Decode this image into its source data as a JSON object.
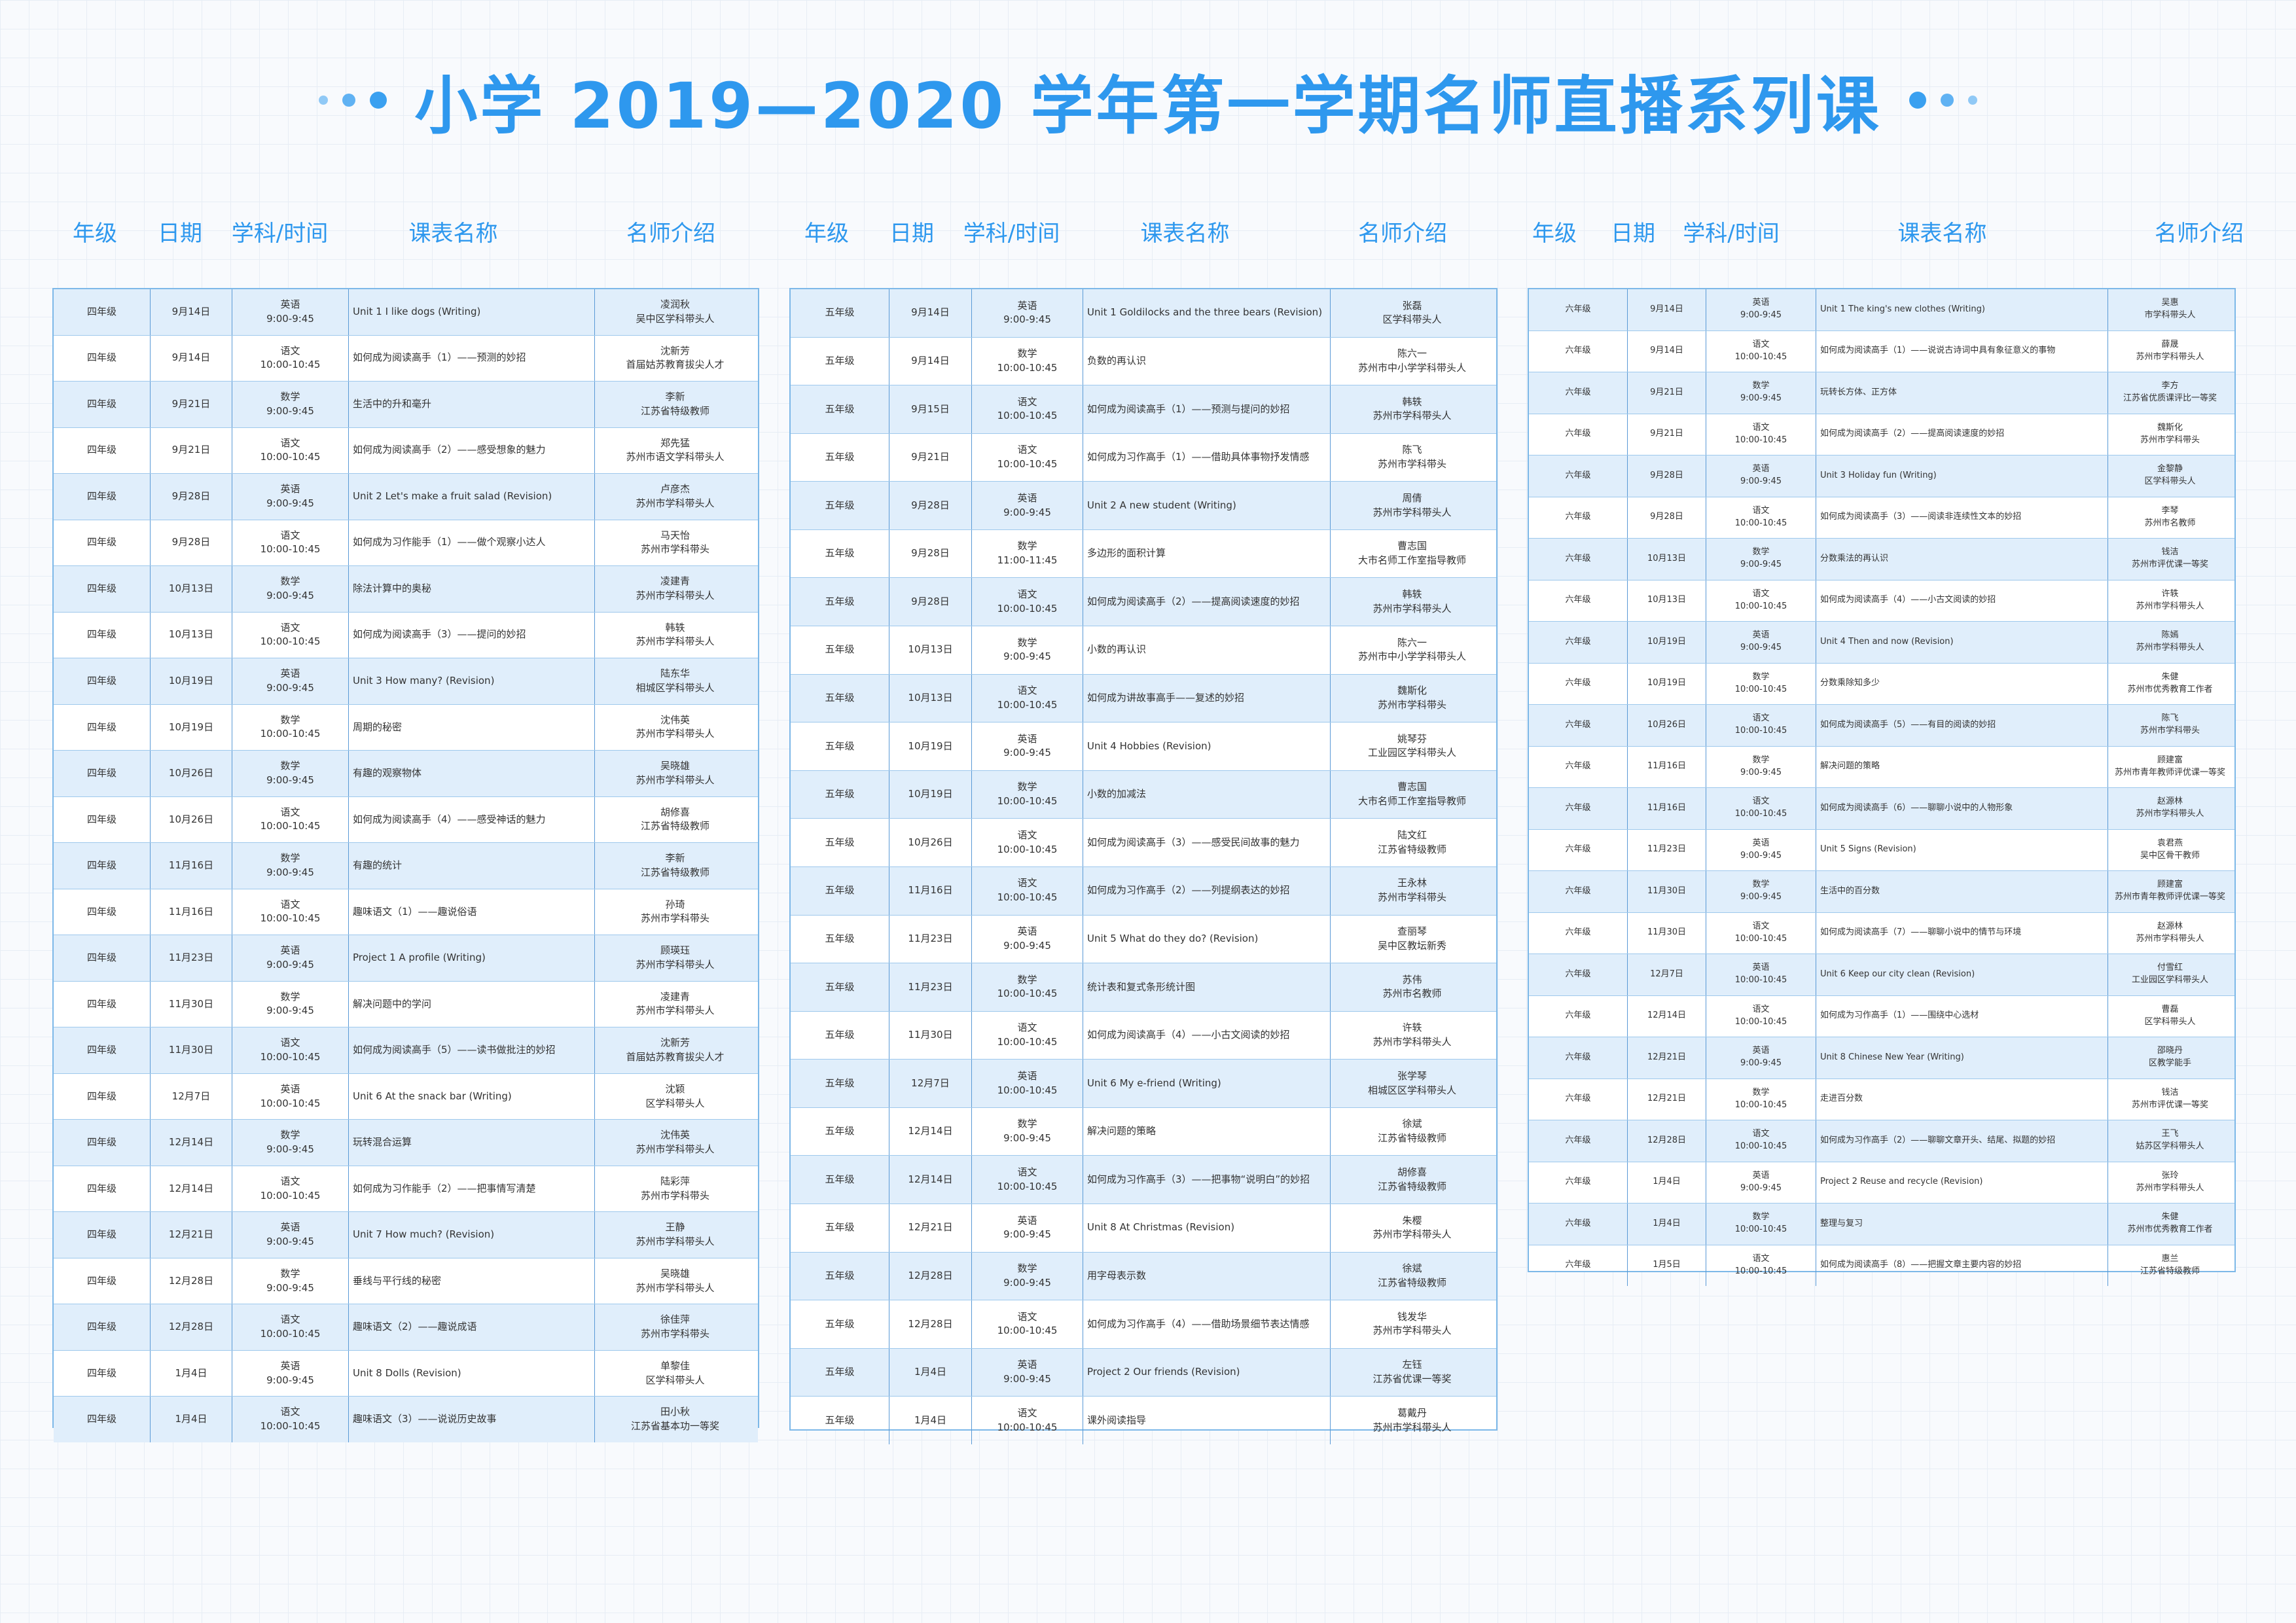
{
  "title": "小学 2019—2020 学年第一学期名师直播系列课",
  "colors": {
    "accent": "#2e98ee",
    "row_alt": "#e0eefb",
    "border": "#7db8e8"
  },
  "headers": {
    "grade": "年级",
    "date": "日期",
    "subject_time": "学科/时间",
    "course": "课表名称",
    "teacher": "名师介绍"
  },
  "grade4": [
    {
      "grade": "四年级",
      "date": "9月14日",
      "subject": "英语",
      "time": "9:00-9:45",
      "course": "Unit 1 I like dogs (Writing)",
      "teacher": "凌润秋",
      "title": "吴中区学科带头人"
    },
    {
      "grade": "四年级",
      "date": "9月14日",
      "subject": "语文",
      "time": "10:00-10:45",
      "course": "如何成为阅读高手（1）——预测的妙招",
      "teacher": "沈新芳",
      "title": "首届姑苏教育拔尖人才"
    },
    {
      "grade": "四年级",
      "date": "9月21日",
      "subject": "数学",
      "time": "9:00-9:45",
      "course": "生活中的升和毫升",
      "teacher": "李新",
      "title": "江苏省特级教师"
    },
    {
      "grade": "四年级",
      "date": "9月21日",
      "subject": "语文",
      "time": "10:00-10:45",
      "course": "如何成为阅读高手（2）——感受想象的魅力",
      "teacher": "郑先猛",
      "title": "苏州市语文学科带头人"
    },
    {
      "grade": "四年级",
      "date": "9月28日",
      "subject": "英语",
      "time": "9:00-9:45",
      "course": "Unit 2 Let's make a fruit salad (Revision)",
      "teacher": "卢彦杰",
      "title": "苏州市学科带头人"
    },
    {
      "grade": "四年级",
      "date": "9月28日",
      "subject": "语文",
      "time": "10:00-10:45",
      "course": "如何成为习作能手（1）——做个观察小达人",
      "teacher": "马天怡",
      "title": "苏州市学科带头"
    },
    {
      "grade": "四年级",
      "date": "10月13日",
      "subject": "数学",
      "time": "9:00-9:45",
      "course": "除法计算中的奥秘",
      "teacher": "凌建青",
      "title": "苏州市学科带头人"
    },
    {
      "grade": "四年级",
      "date": "10月13日",
      "subject": "语文",
      "time": "10:00-10:45",
      "course": "如何成为阅读高手（3）——提问的妙招",
      "teacher": "韩轶",
      "title": "苏州市学科带头人"
    },
    {
      "grade": "四年级",
      "date": "10月19日",
      "subject": "英语",
      "time": "9:00-9:45",
      "course": "Unit 3 How many? (Revision)",
      "teacher": "陆东华",
      "title": "相城区学科带头人"
    },
    {
      "grade": "四年级",
      "date": "10月19日",
      "subject": "数学",
      "time": "10:00-10:45",
      "course": "周期的秘密",
      "teacher": "沈伟英",
      "title": "苏州市学科带头人"
    },
    {
      "grade": "四年级",
      "date": "10月26日",
      "subject": "数学",
      "time": "9:00-9:45",
      "course": "有趣的观察物体",
      "teacher": "吴晓雄",
      "title": "苏州市学科带头人"
    },
    {
      "grade": "四年级",
      "date": "10月26日",
      "subject": "语文",
      "time": "10:00-10:45",
      "course": "如何成为阅读高手（4）——感受神话的魅力",
      "teacher": "胡修喜",
      "title": "江苏省特级教师"
    },
    {
      "grade": "四年级",
      "date": "11月16日",
      "subject": "数学",
      "time": "9:00-9:45",
      "course": "有趣的统计",
      "teacher": "李新",
      "title": "江苏省特级教师"
    },
    {
      "grade": "四年级",
      "date": "11月16日",
      "subject": "语文",
      "time": "10:00-10:45",
      "course": "趣味语文（1）——趣说俗语",
      "teacher": "孙琦",
      "title": "苏州市学科带头"
    },
    {
      "grade": "四年级",
      "date": "11月23日",
      "subject": "英语",
      "time": "9:00-9:45",
      "course": "Project 1 A profile (Writing)",
      "teacher": "顾瑛珏",
      "title": "苏州市学科带头人"
    },
    {
      "grade": "四年级",
      "date": "11月30日",
      "subject": "数学",
      "time": "9:00-9:45",
      "course": "解决问题中的学问",
      "teacher": "凌建青",
      "title": "苏州市学科带头人"
    },
    {
      "grade": "四年级",
      "date": "11月30日",
      "subject": "语文",
      "time": "10:00-10:45",
      "course": "如何成为阅读高手（5）——读书做批注的妙招",
      "teacher": "沈新芳",
      "title": "首届姑苏教育拔尖人才"
    },
    {
      "grade": "四年级",
      "date": "12月7日",
      "subject": "英语",
      "time": "10:00-10:45",
      "course": "Unit 6 At the snack bar (Writing)",
      "teacher": "沈颖",
      "title": "区学科带头人"
    },
    {
      "grade": "四年级",
      "date": "12月14日",
      "subject": "数学",
      "time": "9:00-9:45",
      "course": "玩转混合运算",
      "teacher": "沈伟英",
      "title": "苏州市学科带头人"
    },
    {
      "grade": "四年级",
      "date": "12月14日",
      "subject": "语文",
      "time": "10:00-10:45",
      "course": "如何成为习作能手（2）——把事情写清楚",
      "teacher": "陆彩萍",
      "title": "苏州市学科带头"
    },
    {
      "grade": "四年级",
      "date": "12月21日",
      "subject": "英语",
      "time": "9:00-9:45",
      "course": "Unit 7 How much? (Revision)",
      "teacher": "王静",
      "title": "苏州市学科带头人"
    },
    {
      "grade": "四年级",
      "date": "12月28日",
      "subject": "数学",
      "time": "9:00-9:45",
      "course": "垂线与平行线的秘密",
      "teacher": "吴晓雄",
      "title": "苏州市学科带头人"
    },
    {
      "grade": "四年级",
      "date": "12月28日",
      "subject": "语文",
      "time": "10:00-10:45",
      "course": "趣味语文（2）——趣说成语",
      "teacher": "徐佳萍",
      "title": "苏州市学科带头"
    },
    {
      "grade": "四年级",
      "date": "1月4日",
      "subject": "英语",
      "time": "9:00-9:45",
      "course": "Unit 8 Dolls (Revision)",
      "teacher": "单黎佳",
      "title": "区学科带头人"
    },
    {
      "grade": "四年级",
      "date": "1月4日",
      "subject": "语文",
      "time": "10:00-10:45",
      "course": "趣味语文（3）——说说历史故事",
      "teacher": "田小秋",
      "title": "江苏省基本功一等奖"
    }
  ],
  "grade5": [
    {
      "grade": "五年级",
      "date": "9月14日",
      "subject": "英语",
      "time": "9:00-9:45",
      "course": "Unit 1 Goldilocks and the three bears (Revision)",
      "teacher": "张磊",
      "title": "区学科带头人"
    },
    {
      "grade": "五年级",
      "date": "9月14日",
      "subject": "数学",
      "time": "10:00-10:45",
      "course": "负数的再认识",
      "teacher": "陈六一",
      "title": "苏州市中小学学科带头人"
    },
    {
      "grade": "五年级",
      "date": "9月15日",
      "subject": "语文",
      "time": "10:00-10:45",
      "course": "如何成为阅读高手（1）——预测与提问的妙招",
      "teacher": "韩轶",
      "title": "苏州市学科带头人"
    },
    {
      "grade": "五年级",
      "date": "9月21日",
      "subject": "语文",
      "time": "10:00-10:45",
      "course": "如何成为习作高手（1）——借助具体事物抒发情感",
      "teacher": "陈飞",
      "title": "苏州市学科带头"
    },
    {
      "grade": "五年级",
      "date": "9月28日",
      "subject": "英语",
      "time": "9:00-9:45",
      "course": "Unit 2 A new student (Writing)",
      "teacher": "周倩",
      "title": "苏州市学科带头人"
    },
    {
      "grade": "五年级",
      "date": "9月28日",
      "subject": "数学",
      "time": "11:00-11:45",
      "course": "多边形的面积计算",
      "teacher": "曹志国",
      "title": "大市名师工作室指导教师"
    },
    {
      "grade": "五年级",
      "date": "9月28日",
      "subject": "语文",
      "time": "10:00-10:45",
      "course": "如何成为阅读高手（2）——提高阅读速度的妙招",
      "teacher": "韩轶",
      "title": "苏州市学科带头人"
    },
    {
      "grade": "五年级",
      "date": "10月13日",
      "subject": "数学",
      "time": "9:00-9:45",
      "course": "小数的再认识",
      "teacher": "陈六一",
      "title": "苏州市中小学学科带头人"
    },
    {
      "grade": "五年级",
      "date": "10月13日",
      "subject": "语文",
      "time": "10:00-10:45",
      "course": "如何成为讲故事高手——复述的妙招",
      "teacher": "魏斯化",
      "title": "苏州市学科带头"
    },
    {
      "grade": "五年级",
      "date": "10月19日",
      "subject": "英语",
      "time": "9:00-9:45",
      "course": "Unit 4 Hobbies (Revision)",
      "teacher": "姚琴芬",
      "title": "工业园区学科带头人"
    },
    {
      "grade": "五年级",
      "date": "10月19日",
      "subject": "数学",
      "time": "10:00-10:45",
      "course": "小数的加减法",
      "teacher": "曹志国",
      "title": "大市名师工作室指导教师"
    },
    {
      "grade": "五年级",
      "date": "10月26日",
      "subject": "语文",
      "time": "10:00-10:45",
      "course": "如何成为阅读高手（3）——感受民间故事的魅力",
      "teacher": "陆文红",
      "title": "江苏省特级教师"
    },
    {
      "grade": "五年级",
      "date": "11月16日",
      "subject": "语文",
      "time": "10:00-10:45",
      "course": "如何成为习作高手（2）——列提纲表达的妙招",
      "teacher": "王永林",
      "title": "苏州市学科带头"
    },
    {
      "grade": "五年级",
      "date": "11月23日",
      "subject": "英语",
      "time": "9:00-9:45",
      "course": "Unit 5 What do they do? (Revision)",
      "teacher": "查丽琴",
      "title": "吴中区教坛新秀"
    },
    {
      "grade": "五年级",
      "date": "11月23日",
      "subject": "数学",
      "time": "10:00-10:45",
      "course": "统计表和复式条形统计图",
      "teacher": "苏伟",
      "title": "苏州市名教师"
    },
    {
      "grade": "五年级",
      "date": "11月30日",
      "subject": "语文",
      "time": "10:00-10:45",
      "course": "如何成为阅读高手（4）——小古文阅读的妙招",
      "teacher": "许轶",
      "title": "苏州市学科带头人"
    },
    {
      "grade": "五年级",
      "date": "12月7日",
      "subject": "英语",
      "time": "10:00-10:45",
      "course": "Unit 6 My e-friend (Writing)",
      "teacher": "张学琴",
      "title": "相城区区学科带头人"
    },
    {
      "grade": "五年级",
      "date": "12月14日",
      "subject": "数学",
      "time": "9:00-9:45",
      "course": "解决问题的策略",
      "teacher": "徐斌",
      "title": "江苏省特级教师"
    },
    {
      "grade": "五年级",
      "date": "12月14日",
      "subject": "语文",
      "time": "10:00-10:45",
      "course": "如何成为习作高手（3）——把事物“说明白”的妙招",
      "teacher": "胡修喜",
      "title": "江苏省特级教师"
    },
    {
      "grade": "五年级",
      "date": "12月21日",
      "subject": "英语",
      "time": "9:00-9:45",
      "course": "Unit 8 At Christmas (Revision)",
      "teacher": "朱樱",
      "title": "苏州市学科带头人"
    },
    {
      "grade": "五年级",
      "date": "12月28日",
      "subject": "数学",
      "time": "9:00-9:45",
      "course": "用字母表示数",
      "teacher": "徐斌",
      "title": "江苏省特级教师"
    },
    {
      "grade": "五年级",
      "date": "12月28日",
      "subject": "语文",
      "time": "10:00-10:45",
      "course": "如何成为习作高手（4）——借助场景细节表达情感",
      "teacher": "钱发华",
      "title": "苏州市学科带头人"
    },
    {
      "grade": "五年级",
      "date": "1月4日",
      "subject": "英语",
      "time": "9:00-9:45",
      "course": "Project 2 Our friends (Revision)",
      "teacher": "左钰",
      "title": "江苏省优课一等奖"
    },
    {
      "grade": "五年级",
      "date": "1月4日",
      "subject": "语文",
      "time": "10:00-10:45",
      "course": "课外阅读指导",
      "teacher": "葛戴丹",
      "title": "苏州市学科带头人"
    }
  ],
  "grade6": [
    {
      "grade": "六年级",
      "date": "9月14日",
      "subject": "英语",
      "time": "9:00-9:45",
      "course": "Unit 1 The king's new clothes (Writing)",
      "teacher": "吴惠",
      "title": "市学科带头人"
    },
    {
      "grade": "六年级",
      "date": "9月14日",
      "subject": "语文",
      "time": "10:00-10:45",
      "course": "如何成为阅读高手（1）——说说古诗词中具有象征意义的事物",
      "teacher": "薛晟",
      "title": "苏州市学科带头人"
    },
    {
      "grade": "六年级",
      "date": "9月21日",
      "subject": "数学",
      "time": "9:00-9:45",
      "course": "玩转长方体、正方体",
      "teacher": "李方",
      "title": "江苏省优质课评比一等奖"
    },
    {
      "grade": "六年级",
      "date": "9月21日",
      "subject": "语文",
      "time": "10:00-10:45",
      "course": "如何成为阅读高手（2）——提高阅读速度的妙招",
      "teacher": "魏斯化",
      "title": "苏州市学科带头"
    },
    {
      "grade": "六年级",
      "date": "9月28日",
      "subject": "英语",
      "time": "9:00-9:45",
      "course": "Unit 3 Holiday fun (Writing)",
      "teacher": "金黎静",
      "title": "区学科带头人"
    },
    {
      "grade": "六年级",
      "date": "9月28日",
      "subject": "语文",
      "time": "10:00-10:45",
      "course": "如何成为阅读高手（3）——阅读非连续性文本的妙招",
      "teacher": "李琴",
      "title": "苏州市名教师"
    },
    {
      "grade": "六年级",
      "date": "10月13日",
      "subject": "数学",
      "time": "9:00-9:45",
      "course": "分数乘法的再认识",
      "teacher": "钱洁",
      "title": "苏州市评优课一等奖"
    },
    {
      "grade": "六年级",
      "date": "10月13日",
      "subject": "语文",
      "time": "10:00-10:45",
      "course": "如何成为阅读高手（4）——小古文阅读的妙招",
      "teacher": "许轶",
      "title": "苏州市学科带头人"
    },
    {
      "grade": "六年级",
      "date": "10月19日",
      "subject": "英语",
      "time": "9:00-9:45",
      "course": "Unit 4 Then and now (Revision)",
      "teacher": "陈嫣",
      "title": "苏州市学科带头人"
    },
    {
      "grade": "六年级",
      "date": "10月19日",
      "subject": "数学",
      "time": "10:00-10:45",
      "course": "分数乘除知多少",
      "teacher": "朱健",
      "title": "苏州市优秀教育工作者"
    },
    {
      "grade": "六年级",
      "date": "10月26日",
      "subject": "语文",
      "time": "10:00-10:45",
      "course": "如何成为阅读高手（5）——有目的阅读的妙招",
      "teacher": "陈飞",
      "title": "苏州市学科带头"
    },
    {
      "grade": "六年级",
      "date": "11月16日",
      "subject": "数学",
      "time": "9:00-9:45",
      "course": "解决问题的策略",
      "teacher": "顾建富",
      "title": "苏州市青年教师评优课一等奖"
    },
    {
      "grade": "六年级",
      "date": "11月16日",
      "subject": "语文",
      "time": "10:00-10:45",
      "course": "如何成为阅读高手（6）——聊聊小说中的人物形象",
      "teacher": "赵源林",
      "title": "苏州市学科带头人"
    },
    {
      "grade": "六年级",
      "date": "11月23日",
      "subject": "英语",
      "time": "9:00-9:45",
      "course": "Unit 5 Signs (Revision)",
      "teacher": "袁君燕",
      "title": "吴中区骨干教师"
    },
    {
      "grade": "六年级",
      "date": "11月30日",
      "subject": "数学",
      "time": "9:00-9:45",
      "course": "生活中的百分数",
      "teacher": "顾建富",
      "title": "苏州市青年教师评优课一等奖"
    },
    {
      "grade": "六年级",
      "date": "11月30日",
      "subject": "语文",
      "time": "10:00-10:45",
      "course": "如何成为阅读高手（7）——聊聊小说中的情节与环境",
      "teacher": "赵源林",
      "title": "苏州市学科带头人"
    },
    {
      "grade": "六年级",
      "date": "12月7日",
      "subject": "英语",
      "time": "10:00-10:45",
      "course": "Unit 6 Keep our city clean (Revision)",
      "teacher": "付雪红",
      "title": "工业园区学科带头人"
    },
    {
      "grade": "六年级",
      "date": "12月14日",
      "subject": "语文",
      "time": "10:00-10:45",
      "course": "如何成为习作高手（1）——围绕中心选材",
      "teacher": "曹磊",
      "title": "区学科带头人"
    },
    {
      "grade": "六年级",
      "date": "12月21日",
      "subject": "英语",
      "time": "9:00-9:45",
      "course": "Unit 8 Chinese New Year (Writing)",
      "teacher": "邵晓丹",
      "title": "区教学能手"
    },
    {
      "grade": "六年级",
      "date": "12月21日",
      "subject": "数学",
      "time": "10:00-10:45",
      "course": "走进百分数",
      "teacher": "钱洁",
      "title": "苏州市评优课一等奖"
    },
    {
      "grade": "六年级",
      "date": "12月28日",
      "subject": "语文",
      "time": "10:00-10:45",
      "course": "如何成为习作高手（2）——聊聊文章开头、结尾、拟题的妙招",
      "teacher": "王飞",
      "title": "姑苏区学科带头人"
    },
    {
      "grade": "六年级",
      "date": "1月4日",
      "subject": "英语",
      "time": "9:00-9:45",
      "course": "Project 2 Reuse and recycle (Revision)",
      "teacher": "张玲",
      "title": "苏州市学科带头人"
    },
    {
      "grade": "六年级",
      "date": "1月4日",
      "subject": "数学",
      "time": "10:00-10:45",
      "course": "整理与复习",
      "teacher": "朱健",
      "title": "苏州市优秀教育工作者"
    },
    {
      "grade": "六年级",
      "date": "1月5日",
      "subject": "语文",
      "time": "10:00-10:45",
      "course": "如何成为阅读高手（8）——把握文章主要内容的妙招",
      "teacher": "惠兰",
      "title": "江苏省特级教师"
    }
  ]
}
